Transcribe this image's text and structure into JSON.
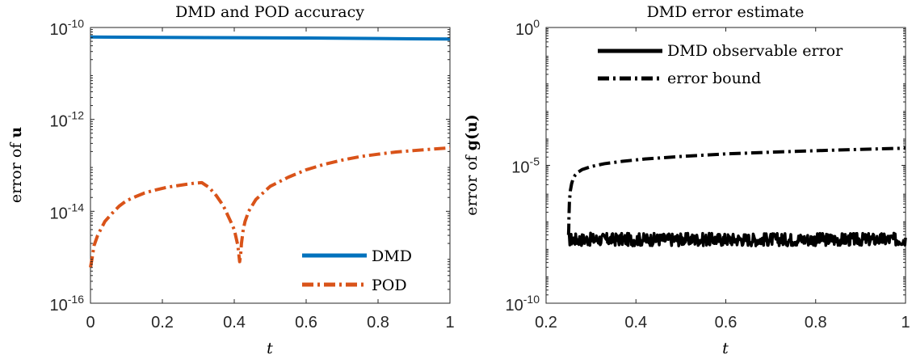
{
  "chart_data": [
    {
      "type": "line",
      "title": "DMD and POD accuracy",
      "xlabel": "t",
      "ylabel": "error of u",
      "ylabel_bold_symbol": true,
      "xscale": "linear",
      "yscale": "log",
      "xlim": [
        0,
        1
      ],
      "ylim": [
        1e-16,
        1e-10
      ],
      "xticks": [
        0,
        0.2,
        0.4,
        0.6,
        0.8,
        1
      ],
      "xtick_labels": [
        "0",
        "0.2",
        "0.4",
        "0.6",
        "0.8",
        "1"
      ],
      "yticks": [
        1e-16,
        1e-14,
        1e-12,
        1e-10
      ],
      "ytick_labels": [
        {
          "base": "10",
          "exp": "-16"
        },
        {
          "base": "10",
          "exp": "-14"
        },
        {
          "base": "10",
          "exp": "-12"
        },
        {
          "base": "10",
          "exp": "-10"
        }
      ],
      "legend_position": "bottom-right",
      "series": [
        {
          "name": "DMD",
          "color": "#0072BD",
          "style": "solid",
          "x": [
            0,
            0.2,
            0.4,
            0.6,
            0.8,
            1.0
          ],
          "y": [
            6.2e-11,
            6.1e-11,
            6e-11,
            5.9e-11,
            5.75e-11,
            5.6e-11
          ]
        },
        {
          "name": "POD",
          "color": "#D95319",
          "style": "dashdot",
          "x": [
            0,
            0.005,
            0.01,
            0.02,
            0.04,
            0.06,
            0.08,
            0.1,
            0.12,
            0.15,
            0.18,
            0.21,
            0.24,
            0.27,
            0.29,
            0.31,
            0.33,
            0.35,
            0.37,
            0.39,
            0.4,
            0.41,
            0.415,
            0.418,
            0.42,
            0.425,
            0.43,
            0.44,
            0.46,
            0.5,
            0.55,
            0.6,
            0.65,
            0.7,
            0.75,
            0.8,
            0.85,
            0.9,
            0.95,
            1.0
          ],
          "y": [
            6e-16,
            1e-15,
            1.8e-15,
            3e-15,
            6e-15,
            9e-15,
            1.3e-14,
            1.7e-14,
            2e-14,
            2.5e-14,
            2.9e-14,
            3.3e-14,
            3.6e-14,
            3.9e-14,
            4.1e-14,
            4.2e-14,
            3.3e-14,
            2.2e-14,
            1.3e-14,
            6e-15,
            4e-15,
            1.8e-15,
            8e-16,
            1.2e-15,
            2e-15,
            4e-15,
            6e-15,
            1e-14,
            1.8e-14,
            3.5e-14,
            5.5e-14,
            8e-14,
            1.05e-13,
            1.3e-13,
            1.55e-13,
            1.75e-13,
            1.95e-13,
            2.1e-13,
            2.25e-13,
            2.4e-13
          ]
        }
      ]
    },
    {
      "type": "line",
      "title": "DMD error estimate",
      "xlabel": "t",
      "ylabel": "error of g(u)",
      "ylabel_bold_symbol": true,
      "xscale": "linear",
      "yscale": "log",
      "xlim": [
        0.2,
        1
      ],
      "ylim": [
        1e-10,
        1
      ],
      "xticks": [
        0.2,
        0.4,
        0.6,
        0.8,
        1
      ],
      "xtick_labels": [
        "0.2",
        "0.4",
        "0.6",
        "0.8",
        "1"
      ],
      "yticks": [
        1e-10,
        1e-05,
        1
      ],
      "ytick_labels": [
        {
          "base": "10",
          "exp": "-10"
        },
        {
          "base": "10",
          "exp": "-5"
        },
        {
          "base": "10",
          "exp": "0"
        }
      ],
      "legend_position": "top-center",
      "series": [
        {
          "name": "DMD observable error",
          "color": "#000000",
          "style": "solid",
          "noisy": true,
          "x": [
            0.25,
            0.3,
            0.4,
            0.5,
            0.6,
            0.7,
            0.8,
            0.9,
            1.0
          ],
          "y": [
            2e-08,
            2e-08,
            2e-08,
            2e-08,
            2e-08,
            2e-08,
            2e-08,
            2e-08,
            2e-08
          ],
          "noise_range": [
            1.2e-08,
            3.5e-08
          ]
        },
        {
          "name": "error bound",
          "color": "#000000",
          "style": "dashdot",
          "x": [
            0.25,
            0.2505,
            0.251,
            0.252,
            0.254,
            0.257,
            0.26,
            0.265,
            0.27,
            0.28,
            0.3,
            0.33,
            0.37,
            0.42,
            0.5,
            0.6,
            0.7,
            0.8,
            0.9,
            1.0
          ],
          "y": [
            3e-08,
            5e-08,
            1.5e-07,
            5e-07,
            1.2e-06,
            2.2e-06,
            3.2e-06,
            4.5e-06,
            5.5e-06,
            7e-06,
            9e-06,
            1.15e-05,
            1.4e-05,
            1.7e-05,
            2.1e-05,
            2.6e-05,
            3e-05,
            3.4e-05,
            3.8e-05,
            4.2e-05
          ]
        }
      ]
    }
  ]
}
